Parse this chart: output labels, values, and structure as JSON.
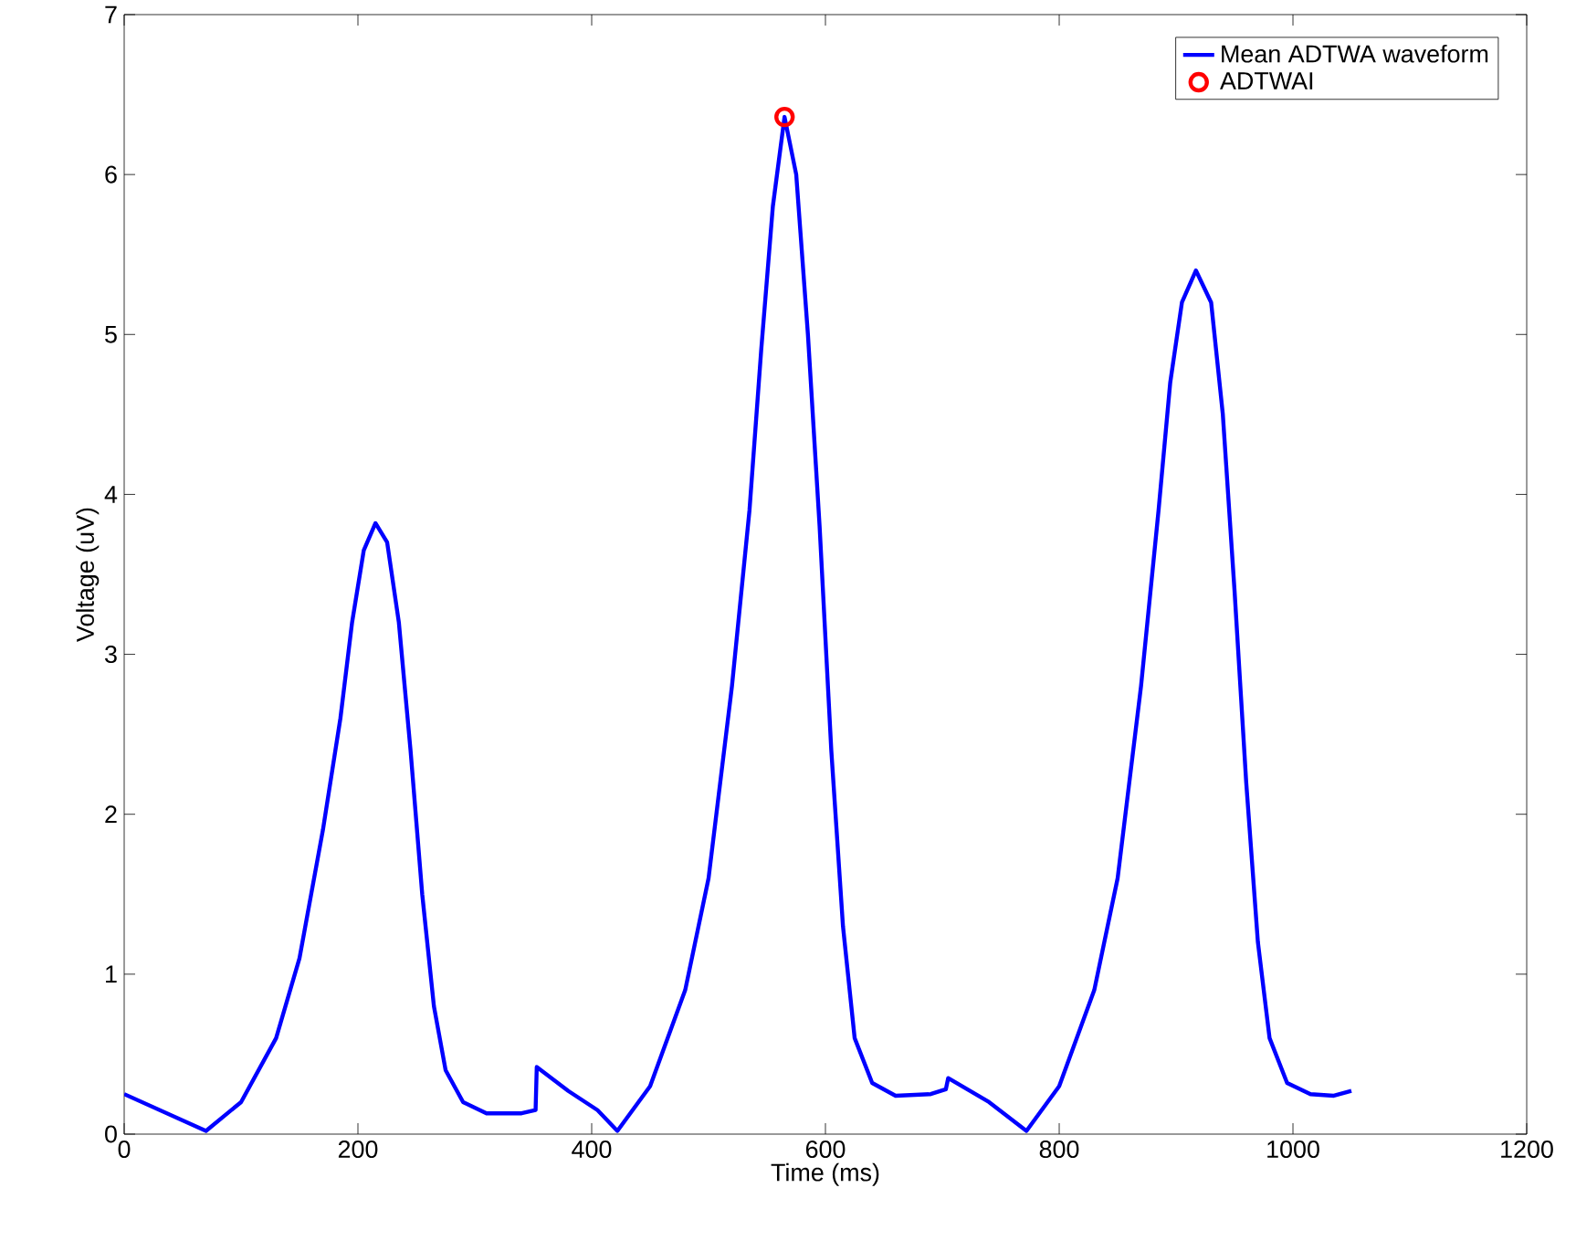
{
  "chart_data": {
    "type": "line",
    "xlabel": "Time (ms)",
    "ylabel": "Voltage (uV)",
    "xlim": [
      0,
      1200
    ],
    "ylim": [
      0,
      7
    ],
    "xticks": [
      0,
      200,
      400,
      600,
      800,
      1000,
      1200
    ],
    "yticks": [
      0,
      1,
      2,
      3,
      4,
      5,
      6,
      7
    ],
    "grid": false,
    "legend": "top right",
    "series": [
      {
        "name": "Mean ADTWA waveform",
        "color": "#0000ff",
        "marker": "none",
        "line_style": "solid",
        "x": [
          0,
          70,
          100,
          130,
          150,
          170,
          185,
          195,
          205,
          215,
          225,
          235,
          245,
          255,
          265,
          275,
          290,
          310,
          340,
          352,
          353,
          380,
          405,
          422,
          450,
          480,
          500,
          520,
          535,
          545,
          555,
          565,
          575,
          585,
          595,
          605,
          615,
          625,
          640,
          660,
          690,
          703,
          705,
          740,
          772,
          800,
          830,
          850,
          870,
          885,
          895,
          905,
          917,
          930,
          940,
          950,
          960,
          970,
          980,
          995,
          1015,
          1035,
          1050
        ],
        "values": [
          0.25,
          0.02,
          0.2,
          0.6,
          1.1,
          1.9,
          2.6,
          3.2,
          3.65,
          3.82,
          3.7,
          3.2,
          2.4,
          1.5,
          0.8,
          0.4,
          0.2,
          0.13,
          0.13,
          0.15,
          0.42,
          0.27,
          0.15,
          0.02,
          0.3,
          0.9,
          1.6,
          2.8,
          3.9,
          4.9,
          5.8,
          6.36,
          6.0,
          5.0,
          3.8,
          2.4,
          1.3,
          0.6,
          0.32,
          0.24,
          0.25,
          0.28,
          0.35,
          0.2,
          0.02,
          0.3,
          0.9,
          1.6,
          2.8,
          3.9,
          4.7,
          5.2,
          5.4,
          5.2,
          4.5,
          3.4,
          2.2,
          1.2,
          0.6,
          0.32,
          0.25,
          0.24,
          0.27
        ]
      },
      {
        "name": "ADTWAI",
        "color": "#ff0000",
        "type": "scatter",
        "marker": "circle",
        "x": [
          565
        ],
        "values": [
          6.36
        ]
      }
    ]
  }
}
